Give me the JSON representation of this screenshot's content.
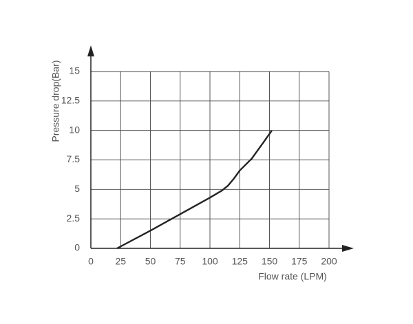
{
  "chart_data": {
    "type": "line",
    "xlabel": "Flow rate (LPM)",
    "ylabel": "Pressure drop(Bar)",
    "x": [
      22,
      50,
      75,
      100,
      110,
      115,
      120,
      125,
      135,
      145,
      152
    ],
    "values": [
      0,
      1.5,
      2.9,
      4.3,
      4.9,
      5.3,
      5.9,
      6.6,
      7.6,
      9.0,
      10
    ],
    "color": "#222222",
    "xlim": [
      0,
      200
    ],
    "xticks": [
      0,
      25,
      50,
      75,
      100,
      125,
      150,
      175,
      200
    ],
    "ylim": [
      0,
      15
    ],
    "yticks": [
      0,
      2.5,
      5,
      7.5,
      10,
      12.5,
      15
    ],
    "grid": true
  }
}
